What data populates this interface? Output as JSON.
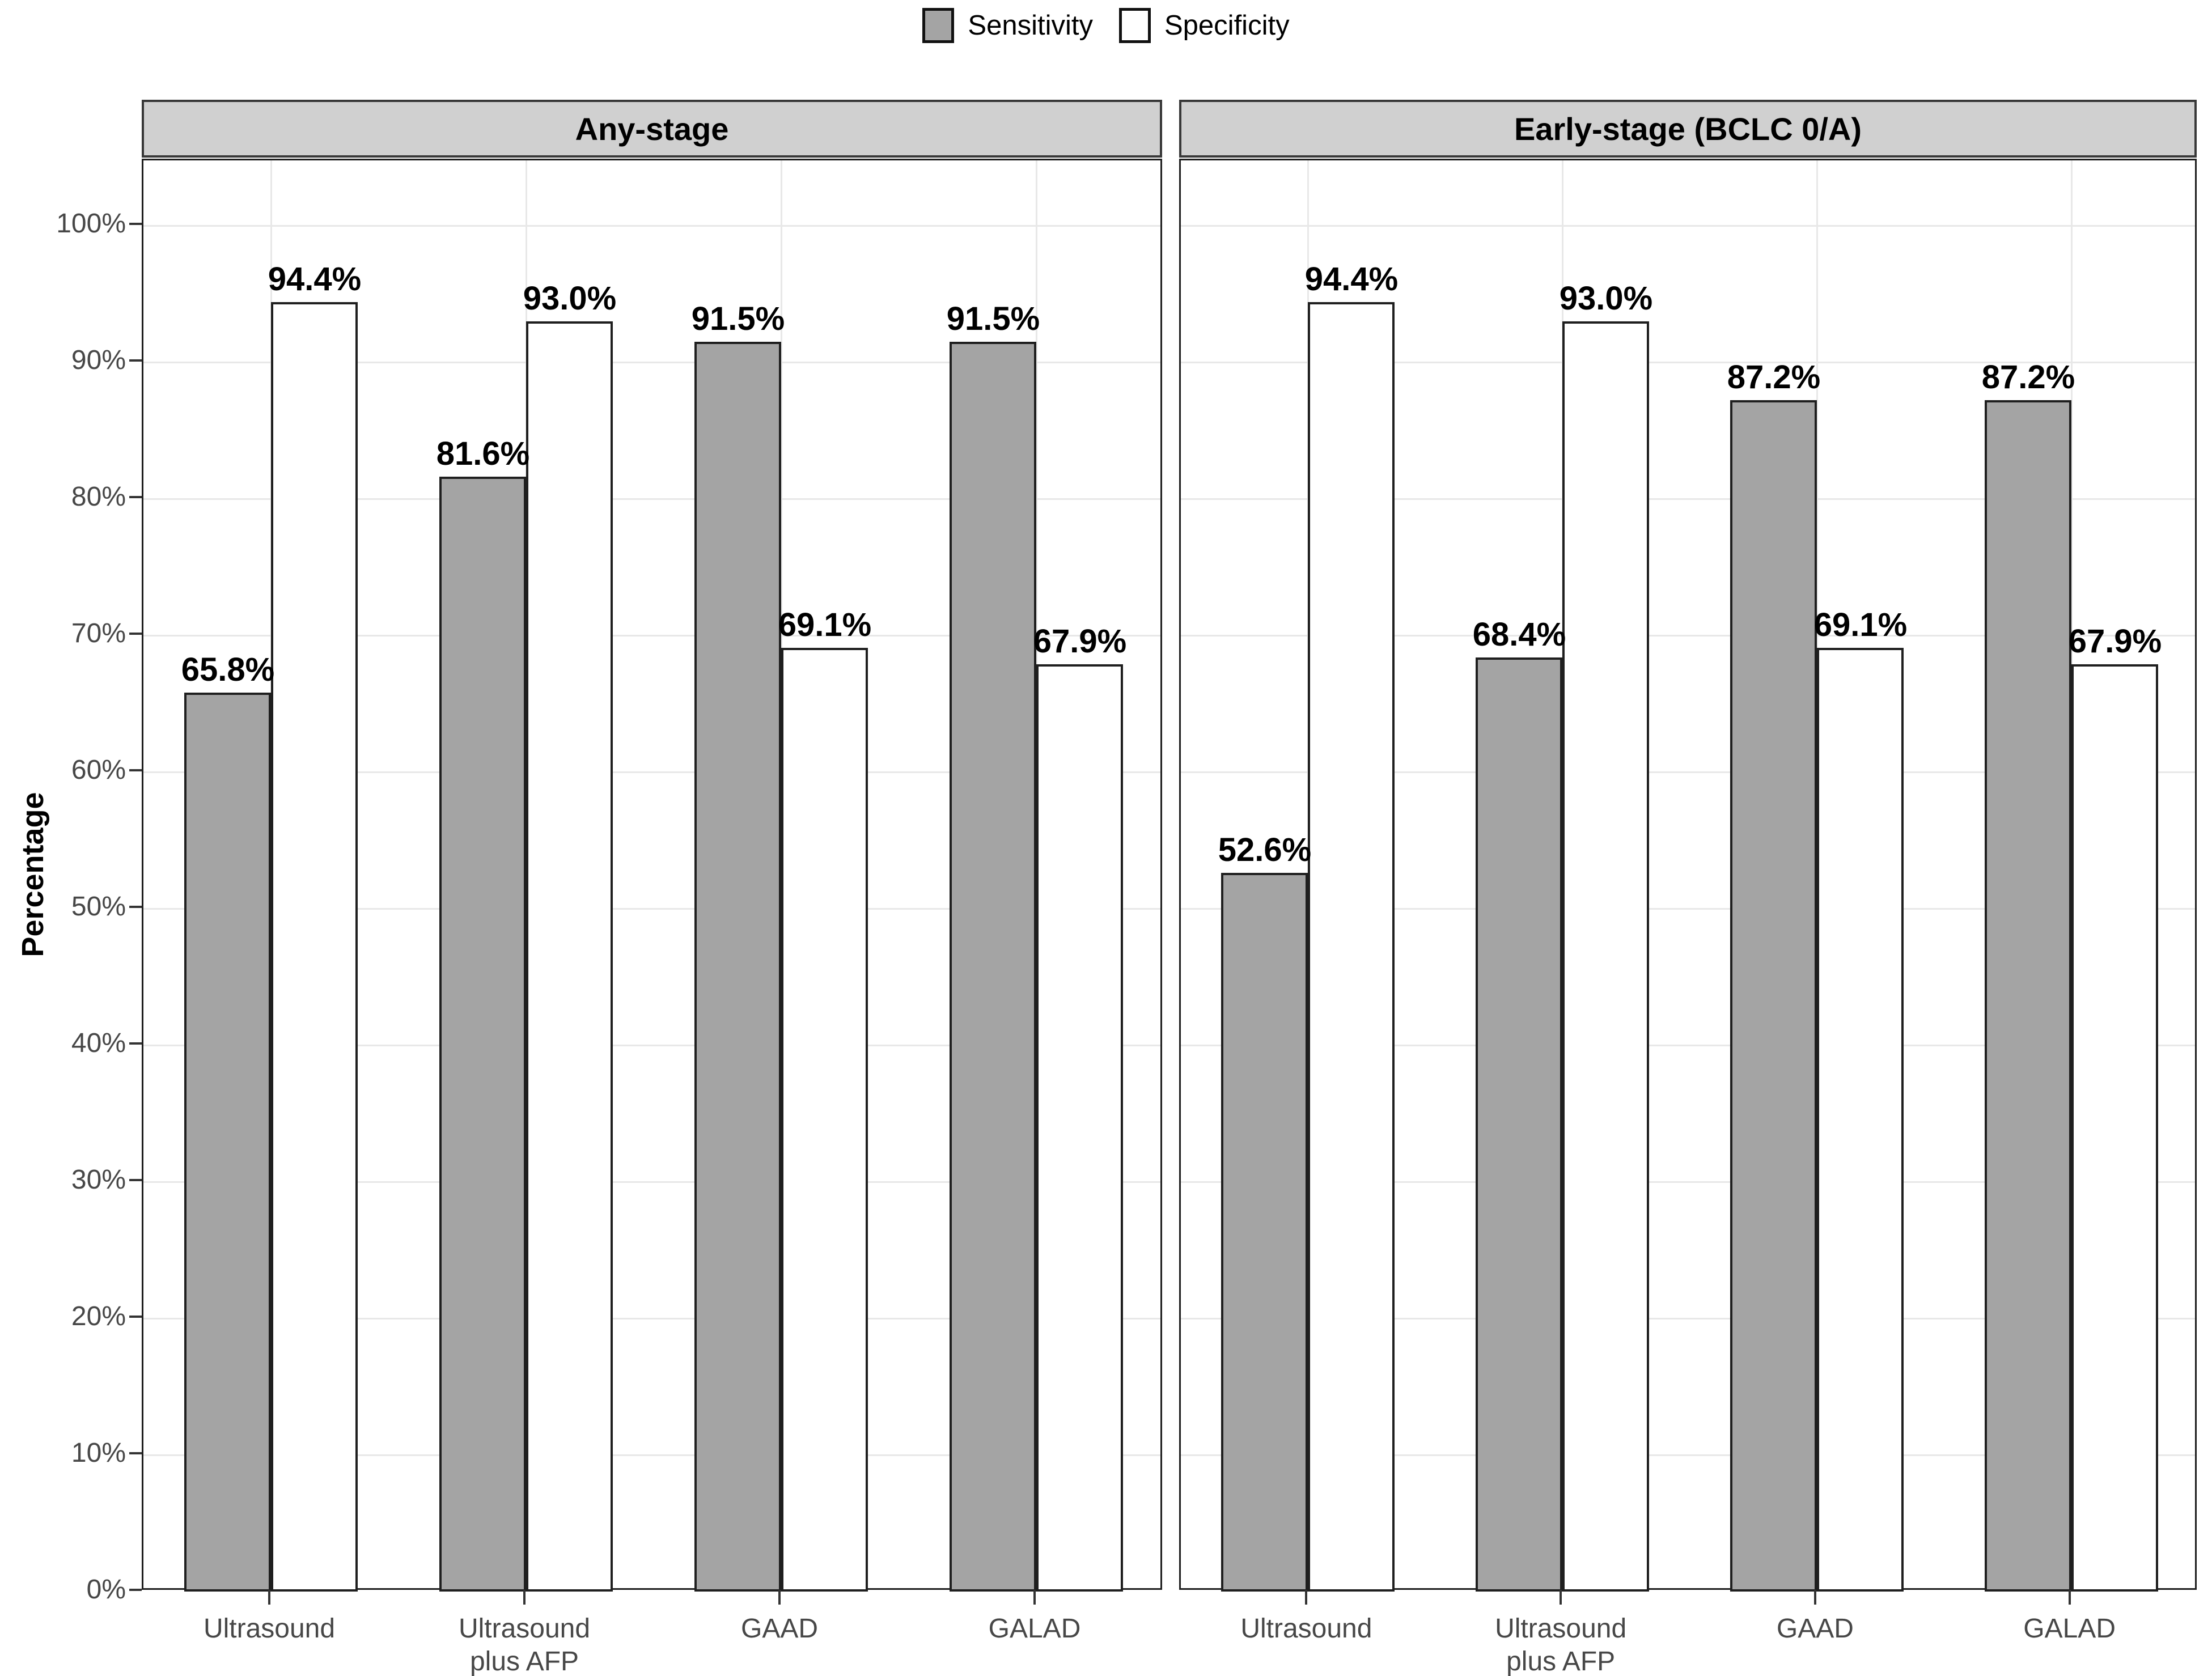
{
  "legend": {
    "items": [
      {
        "label": "Sensitivity",
        "fill": "#a4a4a4"
      },
      {
        "label": "Specificity",
        "fill": "#ffffff"
      }
    ]
  },
  "y_axis": {
    "label": "Percentage",
    "tick_labels": [
      "0%",
      "10%",
      "20%",
      "30%",
      "40%",
      "50%",
      "60%",
      "70%",
      "80%",
      "90%",
      "100%"
    ]
  },
  "x_axis": {
    "category_lines": [
      [
        "Ultrasound"
      ],
      [
        "Ultrasound",
        "plus AFP"
      ],
      [
        "GAAD"
      ],
      [
        "GALAD"
      ]
    ]
  },
  "chart_data": {
    "type": "bar",
    "title": "",
    "ylabel": "Percentage",
    "xlabel": "",
    "ylim": [
      0,
      100
    ],
    "ytick_step_pct": 10,
    "grid": "horizontal major gridlines each 10%, vertical gridlines at category centers",
    "legend_position": "top-center",
    "value_label_decimals": 1,
    "categories": [
      "Ultrasound",
      "Ultrasound plus AFP",
      "GAAD",
      "GALAD"
    ],
    "facets": [
      {
        "title": "Any-stage",
        "series": [
          {
            "name": "Sensitivity",
            "values": [
              65.8,
              81.6,
              91.5,
              91.5
            ]
          },
          {
            "name": "Specificity",
            "values": [
              94.4,
              93.0,
              69.1,
              67.9
            ]
          }
        ]
      },
      {
        "title": "Early-stage (BCLC 0/A)",
        "series": [
          {
            "name": "Sensitivity",
            "values": [
              52.6,
              68.4,
              87.2,
              87.2
            ]
          },
          {
            "name": "Specificity",
            "values": [
              94.4,
              93.0,
              69.1,
              67.9
            ]
          }
        ]
      }
    ],
    "colors": {
      "sensitivity_fill": "#a4a4a4",
      "specificity_fill": "#ffffff",
      "bar_border": "#1f1f1f",
      "strip_fill": "#d0d0d0",
      "strip_border": "#383838",
      "panel_border": "#1f1f1f",
      "gridline": "#e8e8e8",
      "axis_text": "#474747",
      "label_text": "#000000"
    }
  }
}
